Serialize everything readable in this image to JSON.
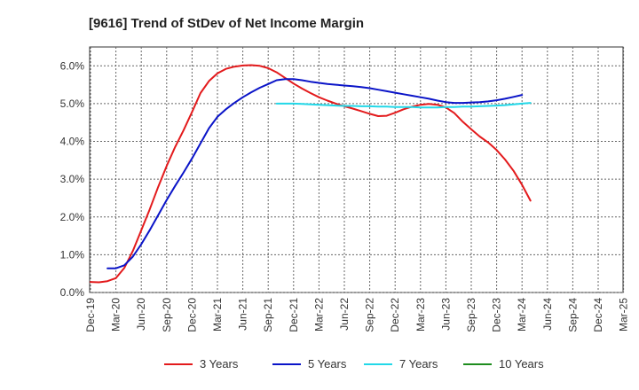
{
  "chart_data": {
    "type": "line",
    "title": "[9616]  Trend of StDev of Net Income Margin",
    "xlabel": "",
    "ylabel": "",
    "ylim": [
      0,
      0.065
    ],
    "yticks": [
      "0.0%",
      "1.0%",
      "2.0%",
      "3.0%",
      "4.0%",
      "5.0%",
      "6.0%"
    ],
    "ytick_values": [
      0,
      0.01,
      0.02,
      0.03,
      0.04,
      0.05,
      0.06
    ],
    "x_categories": [
      "Dec-19",
      "Mar-20",
      "Jun-20",
      "Sep-20",
      "Dec-20",
      "Mar-21",
      "Jun-21",
      "Sep-21",
      "Dec-21",
      "Mar-22",
      "Jun-22",
      "Sep-22",
      "Dec-22",
      "Mar-23",
      "Jun-23",
      "Sep-23",
      "Dec-23",
      "Mar-24",
      "Jun-24",
      "Sep-24",
      "Dec-24",
      "Mar-25"
    ],
    "grid": true,
    "legend_position": "bottom",
    "series": [
      {
        "name": "3 Years",
        "color": "#e31a1c",
        "start_index": 0,
        "values": [
          0.0028,
          0.0027,
          0.003,
          0.0038,
          0.0065,
          0.011,
          0.0165,
          0.022,
          0.028,
          0.0335,
          0.0385,
          0.043,
          0.0478,
          0.0528,
          0.056,
          0.058,
          0.0592,
          0.0598,
          0.0601,
          0.0602,
          0.06,
          0.0594,
          0.0583,
          0.0568,
          0.0553,
          0.054,
          0.0528,
          0.0517,
          0.0508,
          0.05,
          0.0493,
          0.0487,
          0.048,
          0.0473,
          0.0467,
          0.0468,
          0.0476,
          0.0485,
          0.0492,
          0.0497,
          0.0499,
          0.0497,
          0.049,
          0.0475,
          0.0452,
          0.0432,
          0.0413,
          0.0397,
          0.0377,
          0.0352,
          0.0322,
          0.0285,
          0.0243
        ]
      },
      {
        "name": "5 Years",
        "color": "#0a14c8",
        "start_index": 2,
        "values": [
          0.0064,
          0.0064,
          0.0072,
          0.0095,
          0.0128,
          0.0165,
          0.0205,
          0.0245,
          0.0282,
          0.0318,
          0.0355,
          0.0395,
          0.0435,
          0.0465,
          0.0485,
          0.0502,
          0.0517,
          0.053,
          0.0542,
          0.0552,
          0.0562,
          0.0565,
          0.0565,
          0.0562,
          0.0558,
          0.0555,
          0.0552,
          0.055,
          0.0548,
          0.0546,
          0.0544,
          0.0541,
          0.0537,
          0.0533,
          0.0529,
          0.0525,
          0.0521,
          0.0517,
          0.0513,
          0.0508,
          0.0504,
          0.0502,
          0.0502,
          0.0503,
          0.0504,
          0.0506,
          0.0509,
          0.0513,
          0.0518,
          0.0523
        ]
      },
      {
        "name": "7 Years",
        "color": "#22d8e8",
        "start_index": 22,
        "values": [
          0.05,
          0.05,
          0.05,
          0.0499,
          0.0498,
          0.0497,
          0.0496,
          0.0495,
          0.0494,
          0.0494,
          0.0493,
          0.0493,
          0.0492,
          0.0492,
          0.0491,
          0.0491,
          0.0491,
          0.049,
          0.049,
          0.049,
          0.0491,
          0.0491,
          0.0492,
          0.0492,
          0.0493,
          0.0494,
          0.0495,
          0.0496,
          0.0498,
          0.05,
          0.0502
        ]
      },
      {
        "name": "10 Years",
        "color": "#1e8c1e",
        "start_index": 0,
        "values": []
      }
    ]
  }
}
